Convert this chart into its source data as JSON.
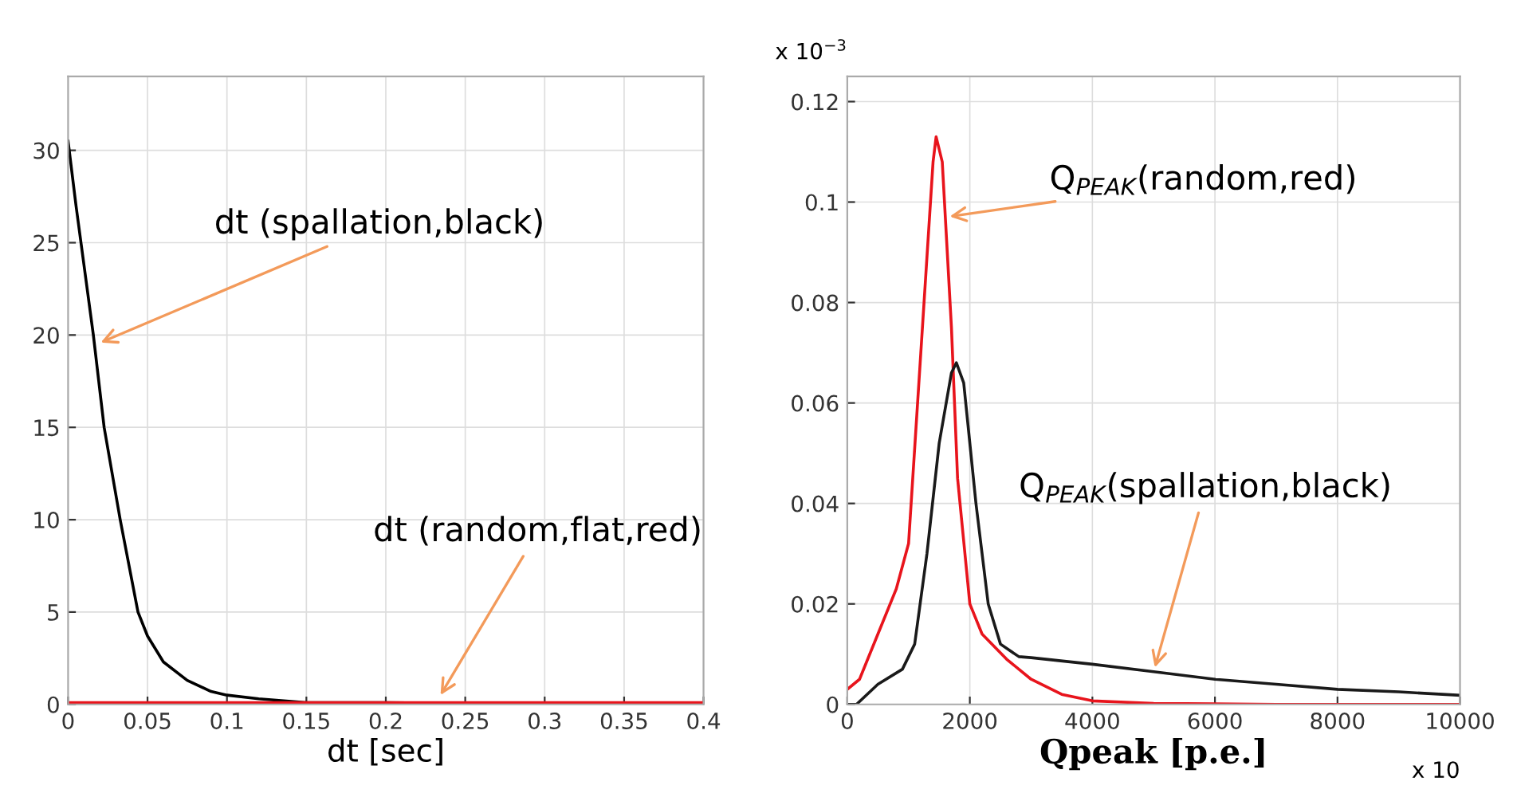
{
  "chart_data": [
    {
      "type": "line",
      "xlabel": "dt [sec]",
      "xlim": [
        0,
        0.4
      ],
      "ylim": [
        0,
        34
      ],
      "xticks": [
        0,
        0.05,
        0.1,
        0.15,
        0.2,
        0.25,
        0.3,
        0.35,
        0.4
      ],
      "yticks": [
        0,
        5,
        10,
        15,
        20,
        25,
        30
      ],
      "grid": true,
      "legend": false,
      "series": [
        {
          "color": "#000000",
          "x": [
            0,
            0.005,
            0.0159,
            0.0227,
            0.0328,
            0.044,
            0.05,
            0.06,
            0.075,
            0.09,
            0.1,
            0.12,
            0.15,
            0.2,
            0.3,
            0.4
          ],
          "values": [
            30.5,
            27,
            20,
            15,
            10,
            5,
            3.7,
            2.3,
            1.3,
            0.7,
            0.5,
            0.3,
            0.1,
            0.1,
            0.0,
            0.0
          ]
        },
        {
          "color": "#e8141c",
          "x": [
            0,
            0.4
          ],
          "values": [
            0.1,
            0.1
          ]
        }
      ],
      "annotations": [
        {
          "text": "dt (spallation,black)",
          "x": 0.018,
          "y": 19.5
        },
        {
          "text": "dt (random,flat,red)",
          "x": 0.233,
          "y": 0.3
        }
      ]
    },
    {
      "type": "line",
      "xlabel": "Qpeak [p.e.]",
      "xlim": [
        0,
        10000
      ],
      "ylim": [
        0,
        0.125
      ],
      "xticks": [
        0,
        2000,
        4000,
        6000,
        8000,
        10000
      ],
      "yticks": [
        0,
        0.02,
        0.04,
        0.06,
        0.08,
        0.1,
        0.12
      ],
      "grid": true,
      "legend": false,
      "series": [
        {
          "color": "#e8141c",
          "x": [
            0,
            200,
            500,
            800,
            1000,
            1200,
            1400,
            1450,
            1550,
            1700,
            1800,
            2000,
            2200,
            2600,
            3000,
            3500,
            4000,
            5000,
            7000,
            10000
          ],
          "values": [
            0.003,
            0.005,
            0.014,
            0.023,
            0.032,
            0.07,
            0.108,
            0.113,
            0.108,
            0.075,
            0.045,
            0.02,
            0.014,
            0.009,
            0.005,
            0.002,
            0.0007,
            0.0002,
            0.0,
            0.0
          ]
        },
        {
          "color": "#1a1a1a",
          "x": [
            0,
            150,
            500,
            900,
            1100,
            1300,
            1500,
            1700,
            1780,
            1900,
            2100,
            2300,
            2500,
            2800,
            3000,
            4000,
            5000,
            6000,
            7000,
            8000,
            9000,
            10000
          ],
          "values": [
            0.0,
            0.0,
            0.004,
            0.007,
            0.012,
            0.03,
            0.052,
            0.066,
            0.068,
            0.064,
            0.04,
            0.02,
            0.012,
            0.0095,
            0.0093,
            0.008,
            0.0065,
            0.005,
            0.004,
            0.003,
            0.0025,
            0.0018
          ]
        }
      ],
      "annotations": [
        {
          "text": "Q$_{PEAK}$(random,red)",
          "x": 1600,
          "y": 0.097
        },
        {
          "text": "Q$_{PEAK}$(spallation,black)",
          "x": 5000,
          "y": 0.0065
        },
        "x 10$^{−3}$",
        "x 10"
      ]
    }
  ]
}
